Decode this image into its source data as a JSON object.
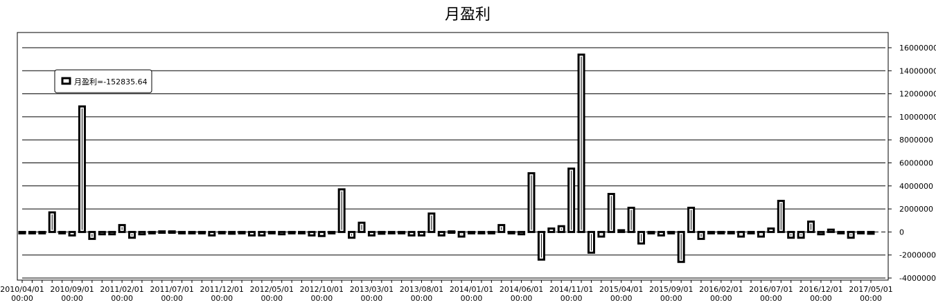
{
  "chart_data": {
    "type": "bar",
    "title": "月盈利",
    "series": [
      {
        "name": "月盈利",
        "color": "#000000",
        "values": [
          0,
          0,
          -100000,
          1700000,
          -100000,
          -300000,
          10900000,
          -600000,
          -200000,
          -200000,
          600000,
          -500000,
          -200000,
          0,
          50000,
          50000,
          0,
          0,
          0,
          -300000,
          0,
          -150000,
          -100000,
          -300000,
          -300000,
          -100000,
          -200000,
          0,
          0,
          -300000,
          -350000,
          -50000,
          3700000,
          -500000,
          800000,
          -300000,
          -150000,
          0,
          0,
          -300000,
          -300000,
          1600000,
          -300000,
          50000,
          -400000,
          0,
          0,
          -100000,
          600000,
          -50000,
          -200000,
          5100000,
          -2400000,
          300000,
          500000,
          5500000,
          15400000,
          -1800000,
          -400000,
          3300000,
          150000,
          2100000,
          -1000000,
          0,
          -300000,
          0,
          -2600000,
          2100000,
          -600000,
          0,
          -100000,
          -50000,
          -400000,
          0,
          -400000,
          300000,
          2700000,
          -500000,
          -500000,
          900000,
          -200000,
          200000,
          0,
          -500000,
          0,
          -152835.64
        ]
      }
    ],
    "legend_text": "月盈利=-152835.64",
    "categories": [
      "2010/04/01 00:00",
      null,
      null,
      null,
      null,
      "2010/09/01 00:00",
      null,
      null,
      null,
      null,
      "2011/02/01 00:00",
      null,
      null,
      null,
      null,
      "2011/07/01 00:00",
      null,
      null,
      null,
      null,
      "2011/12/01 00:00",
      null,
      null,
      null,
      null,
      "2012/05/01 00:00",
      null,
      null,
      null,
      null,
      "2012/10/01 00:00",
      null,
      null,
      null,
      null,
      "2013/03/01 00:00",
      null,
      null,
      null,
      null,
      "2013/08/01 00:00",
      null,
      null,
      null,
      null,
      "2014/01/01 00:00",
      null,
      null,
      null,
      null,
      "2014/06/01 00:00",
      null,
      null,
      null,
      null,
      "2014/11/01 00:00",
      null,
      null,
      null,
      null,
      "2015/04/01 00:00",
      null,
      null,
      null,
      null,
      "2015/09/01 00:00",
      null,
      null,
      null,
      null,
      "2016/02/01 00:00",
      null,
      null,
      null,
      null,
      "2016/07/01 00:00",
      null,
      null,
      null,
      null,
      "2016/12/01 00:00",
      null,
      null,
      null,
      null,
      "2017/05/01 00:00"
    ],
    "ylim": [
      -4000000,
      16000000
    ],
    "yticks": [
      -4000000,
      -2000000,
      0,
      2000000,
      4000000,
      6000000,
      8000000,
      10000000,
      12000000,
      14000000,
      16000000
    ],
    "grid": true
  }
}
